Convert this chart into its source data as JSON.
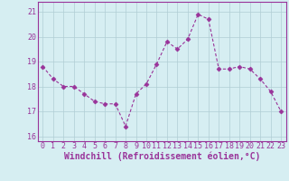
{
  "x": [
    0,
    1,
    2,
    3,
    4,
    5,
    6,
    7,
    8,
    9,
    10,
    11,
    12,
    13,
    14,
    15,
    16,
    17,
    18,
    19,
    20,
    21,
    22,
    23
  ],
  "y": [
    18.8,
    18.3,
    18.0,
    18.0,
    17.7,
    17.4,
    17.3,
    17.3,
    16.4,
    17.7,
    18.1,
    18.9,
    19.8,
    19.5,
    19.9,
    20.9,
    20.7,
    18.7,
    18.7,
    18.8,
    18.7,
    18.3,
    17.8,
    17.0
  ],
  "line_color": "#993399",
  "marker": "D",
  "marker_size": 2.5,
  "bg_color": "#d6eef2",
  "grid_color": "#b0cdd4",
  "xlabel": "Windchill (Refroidissement éolien,°C)",
  "xlabel_fontsize": 7,
  "tick_fontsize": 6,
  "ylim": [
    15.8,
    21.4
  ],
  "xlim": [
    -0.5,
    23.5
  ],
  "yticks": [
    16,
    17,
    18,
    19,
    20,
    21
  ],
  "xticks": [
    0,
    1,
    2,
    3,
    4,
    5,
    6,
    7,
    8,
    9,
    10,
    11,
    12,
    13,
    14,
    15,
    16,
    17,
    18,
    19,
    20,
    21,
    22,
    23
  ],
  "spine_color": "#993399",
  "line_width": 0.8
}
